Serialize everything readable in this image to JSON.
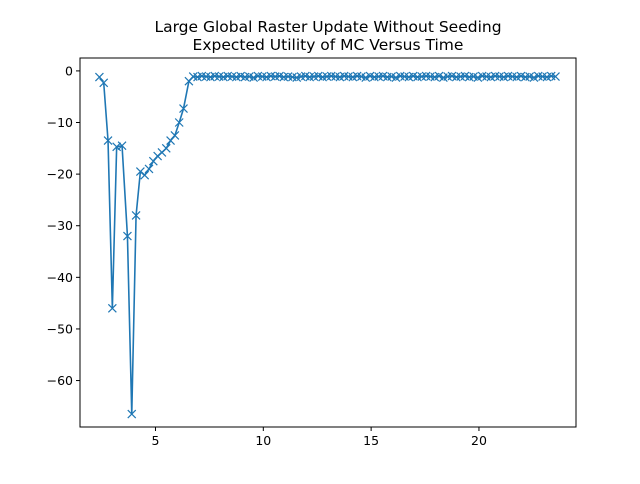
{
  "chart_data": {
    "type": "line",
    "title_lines": [
      "Large Global Raster Update Without Seeding",
      "Expected Utility of MC Versus Time"
    ],
    "xlabel": "",
    "ylabel": "",
    "xlim": [
      1.5,
      24.5
    ],
    "ylim": [
      -69,
      2.5
    ],
    "xticks": [
      5,
      10,
      15,
      20
    ],
    "xtick_labels": [
      "5",
      "10",
      "15",
      "20"
    ],
    "yticks": [
      0,
      -10,
      -20,
      -30,
      -40,
      -50,
      -60
    ],
    "ytick_labels": [
      "0",
      "−10",
      "−20",
      "−30",
      "−40",
      "−50",
      "−60"
    ],
    "grid": false,
    "legend": "none",
    "series": [
      {
        "marker": "x",
        "color": "#1f77b4",
        "x": [
          2.4,
          2.6,
          2.8,
          3.0,
          3.2,
          3.45,
          3.7,
          3.9,
          4.1,
          4.3,
          4.5,
          4.7,
          4.9,
          5.1,
          5.3,
          5.5,
          5.7,
          5.9,
          6.1,
          6.3,
          6.55,
          6.75,
          6.95,
          7.15,
          7.35,
          7.55,
          7.75,
          7.95,
          8.15,
          8.35,
          8.55,
          8.75,
          8.95,
          9.15,
          9.35,
          9.55,
          9.75,
          9.95,
          10.15,
          10.35,
          10.55,
          10.75,
          10.95,
          11.15,
          11.35,
          11.55,
          11.75,
          11.95,
          12.15,
          12.35,
          12.55,
          12.75,
          12.95,
          13.15,
          13.35,
          13.55,
          13.75,
          13.95,
          14.15,
          14.35,
          14.55,
          14.75,
          14.95,
          15.15,
          15.35,
          15.55,
          15.75,
          15.95,
          16.15,
          16.35,
          16.55,
          16.75,
          16.95,
          17.15,
          17.35,
          17.55,
          17.75,
          17.95,
          18.15,
          18.35,
          18.55,
          18.75,
          18.95,
          19.15,
          19.35,
          19.55,
          19.75,
          19.95,
          20.15,
          20.35,
          20.55,
          20.75,
          20.95,
          21.15,
          21.35,
          21.55,
          21.75,
          21.95,
          22.15,
          22.35,
          22.55,
          22.75,
          22.95,
          23.15,
          23.35,
          23.55
        ],
        "y": [
          -1.2,
          -2.3,
          -13.5,
          -46.0,
          -14.7,
          -14.5,
          -32.0,
          -66.5,
          -28.0,
          -19.5,
          -20.2,
          -19.0,
          -17.5,
          -16.5,
          -15.8,
          -15.0,
          -13.5,
          -12.5,
          -10.0,
          -7.3,
          -2.0,
          -1.1,
          -1.2,
          -1.0,
          -1.1,
          -1.2,
          -1.0,
          -1.1,
          -1.2,
          -1.0,
          -1.1,
          -1.2,
          -1.0,
          -1.2,
          -1.1,
          -1.3,
          -1.0,
          -1.1,
          -1.2,
          -1.0,
          -1.1,
          -1.0,
          -1.2,
          -1.1,
          -1.2,
          -1.3,
          -1.1,
          -1.0,
          -1.2,
          -1.1,
          -1.0,
          -1.2,
          -1.1,
          -1.0,
          -1.1,
          -1.2,
          -1.0,
          -1.1,
          -1.2,
          -1.0,
          -1.1,
          -1.3,
          -1.0,
          -1.2,
          -1.1,
          -1.0,
          -1.2,
          -1.1,
          -1.3,
          -1.0,
          -1.1,
          -1.2,
          -1.0,
          -1.2,
          -1.1,
          -1.0,
          -1.1,
          -1.2,
          -1.0,
          -1.3,
          -1.1,
          -1.0,
          -1.2,
          -1.1,
          -1.0,
          -1.2,
          -1.1,
          -1.3,
          -1.0,
          -1.1,
          -1.2,
          -1.0,
          -1.1,
          -1.2,
          -1.0,
          -1.1,
          -1.2,
          -1.0,
          -1.2,
          -1.1,
          -1.3,
          -1.0,
          -1.1,
          -1.2,
          -1.0,
          -1.1
        ]
      }
    ]
  }
}
